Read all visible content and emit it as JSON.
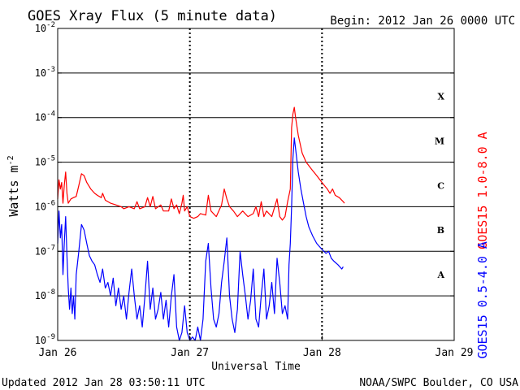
{
  "chart_data": {
    "type": "line",
    "title": "GOES Xray Flux (5 minute data)",
    "subtitle": "Begin:  2012 Jan 26 0000 UTC",
    "xlabel": "Universal Time",
    "ylabel_main": "Watts m",
    "ylabel_sup": "-2",
    "footer_left": "Updated 2012 Jan 28 03:50:11 UTC",
    "footer_right": "NOAA/SWPC Boulder, CO USA",
    "y_scale": "log",
    "ylim": [
      1e-09,
      0.01
    ],
    "xlim": [
      0,
      3
    ],
    "x_unit": "days since 2012 Jan 26 0000 UTC",
    "y_ticks": [
      {
        "value": 0.01,
        "base": "10",
        "exp": "-2"
      },
      {
        "value": 0.001,
        "base": "10",
        "exp": "-3"
      },
      {
        "value": 0.0001,
        "base": "10",
        "exp": "-4"
      },
      {
        "value": 1e-05,
        "base": "10",
        "exp": "-5"
      },
      {
        "value": 1e-06,
        "base": "10",
        "exp": "-6"
      },
      {
        "value": 1e-07,
        "base": "10",
        "exp": "-7"
      },
      {
        "value": 1e-08,
        "base": "10",
        "exp": "-8"
      },
      {
        "value": 1e-09,
        "base": "10",
        "exp": "-9"
      }
    ],
    "x_ticks": [
      {
        "value": 0,
        "label": "Jan 26"
      },
      {
        "value": 1,
        "label": "Jan 27"
      },
      {
        "value": 2,
        "label": "Jan 28"
      },
      {
        "value": 3,
        "label": "Jan 29"
      }
    ],
    "gridlines": [
      0.001,
      0.0001,
      1e-05,
      1e-06,
      1e-07,
      1e-08
    ],
    "flare_classes": [
      {
        "label": "X",
        "value": 0.0003
      },
      {
        "label": "M",
        "value": 3e-05
      },
      {
        "label": "C",
        "value": 3e-06
      },
      {
        "label": "B",
        "value": 3e-07
      },
      {
        "label": "A",
        "value": 3e-08
      }
    ],
    "series": [
      {
        "name": "GOES15 1.0-8.0 A",
        "color": "#ff0000",
        "points": [
          [
            0.0,
            1.5e-06
          ],
          [
            0.01,
            4e-06
          ],
          [
            0.02,
            2.5e-06
          ],
          [
            0.03,
            3.5e-06
          ],
          [
            0.04,
            1.2e-06
          ],
          [
            0.05,
            3e-06
          ],
          [
            0.06,
            6e-06
          ],
          [
            0.07,
            2e-06
          ],
          [
            0.08,
            1.2e-06
          ],
          [
            0.1,
            1.5e-06
          ],
          [
            0.12,
            1.6e-06
          ],
          [
            0.14,
            1.7e-06
          ],
          [
            0.16,
            3e-06
          ],
          [
            0.18,
            5.5e-06
          ],
          [
            0.2,
            5e-06
          ],
          [
            0.22,
            3.5e-06
          ],
          [
            0.25,
            2.5e-06
          ],
          [
            0.28,
            2e-06
          ],
          [
            0.3,
            1.8e-06
          ],
          [
            0.33,
            1.6e-06
          ],
          [
            0.34,
            2e-06
          ],
          [
            0.36,
            1.4e-06
          ],
          [
            0.4,
            1.2e-06
          ],
          [
            0.44,
            1.1e-06
          ],
          [
            0.48,
            1e-06
          ],
          [
            0.5,
            9e-07
          ],
          [
            0.54,
            1e-06
          ],
          [
            0.58,
            9e-07
          ],
          [
            0.6,
            1.3e-06
          ],
          [
            0.62,
            9e-07
          ],
          [
            0.66,
            1e-06
          ],
          [
            0.68,
            1.6e-06
          ],
          [
            0.7,
            1e-06
          ],
          [
            0.72,
            1.7e-06
          ],
          [
            0.74,
            9e-07
          ],
          [
            0.78,
            1.1e-06
          ],
          [
            0.8,
            8e-07
          ],
          [
            0.84,
            8e-07
          ],
          [
            0.86,
            1.5e-06
          ],
          [
            0.88,
            9e-07
          ],
          [
            0.9,
            1.1e-06
          ],
          [
            0.92,
            7e-07
          ],
          [
            0.94,
            1.2e-06
          ],
          [
            0.95,
            1.8e-06
          ],
          [
            0.96,
            8e-07
          ],
          [
            0.98,
            1e-06
          ],
          [
            1.0,
            6e-07
          ],
          [
            1.03,
            5.5e-07
          ],
          [
            1.06,
            6e-07
          ],
          [
            1.08,
            7e-07
          ],
          [
            1.12,
            6.5e-07
          ],
          [
            1.14,
            1.8e-06
          ],
          [
            1.16,
            8e-07
          ],
          [
            1.2,
            6e-07
          ],
          [
            1.24,
            1.1e-06
          ],
          [
            1.26,
            2.5e-06
          ],
          [
            1.28,
            1.5e-06
          ],
          [
            1.3,
            1e-06
          ],
          [
            1.33,
            8e-07
          ],
          [
            1.36,
            6e-07
          ],
          [
            1.4,
            8e-07
          ],
          [
            1.44,
            6e-07
          ],
          [
            1.48,
            7e-07
          ],
          [
            1.5,
            1e-06
          ],
          [
            1.52,
            6e-07
          ],
          [
            1.54,
            1.3e-06
          ],
          [
            1.56,
            6e-07
          ],
          [
            1.58,
            8e-07
          ],
          [
            1.62,
            6e-07
          ],
          [
            1.66,
            1.5e-06
          ],
          [
            1.68,
            6e-07
          ],
          [
            1.7,
            5e-07
          ],
          [
            1.72,
            6e-07
          ],
          [
            1.74,
            1.3e-06
          ],
          [
            1.76,
            2.5e-06
          ],
          [
            1.77,
            6e-05
          ],
          [
            1.78,
            0.00012
          ],
          [
            1.79,
            0.00017
          ],
          [
            1.8,
            0.0001
          ],
          [
            1.82,
            4e-05
          ],
          [
            1.85,
            1.6e-05
          ],
          [
            1.88,
            1e-05
          ],
          [
            1.92,
            7e-06
          ],
          [
            1.96,
            5e-06
          ],
          [
            2.0,
            3.5e-06
          ],
          [
            2.04,
            2.5e-06
          ],
          [
            2.06,
            2e-06
          ],
          [
            2.08,
            2.5e-06
          ],
          [
            2.1,
            1.8e-06
          ],
          [
            2.13,
            1.6e-06
          ],
          [
            2.16,
            1.3e-06
          ],
          [
            2.17,
            1.2e-06
          ]
        ]
      },
      {
        "name": "GOES15 0.5-4.0 A",
        "color": "#0000ff",
        "points": [
          [
            0.0,
            1.5e-07
          ],
          [
            0.01,
            8e-07
          ],
          [
            0.02,
            2e-07
          ],
          [
            0.03,
            4e-07
          ],
          [
            0.04,
            3e-08
          ],
          [
            0.05,
            1.5e-07
          ],
          [
            0.06,
            6e-07
          ],
          [
            0.07,
            8e-08
          ],
          [
            0.08,
            1.5e-08
          ],
          [
            0.09,
            5e-09
          ],
          [
            0.1,
            1.5e-08
          ],
          [
            0.11,
            4e-09
          ],
          [
            0.12,
            1e-08
          ],
          [
            0.13,
            3e-09
          ],
          [
            0.14,
            3e-08
          ],
          [
            0.16,
            1e-07
          ],
          [
            0.18,
            4e-07
          ],
          [
            0.2,
            3e-07
          ],
          [
            0.22,
            1.5e-07
          ],
          [
            0.24,
            8e-08
          ],
          [
            0.26,
            6e-08
          ],
          [
            0.28,
            5e-08
          ],
          [
            0.3,
            3e-08
          ],
          [
            0.32,
            2e-08
          ],
          [
            0.34,
            4e-08
          ],
          [
            0.36,
            1.5e-08
          ],
          [
            0.38,
            2e-08
          ],
          [
            0.4,
            1e-08
          ],
          [
            0.42,
            2.5e-08
          ],
          [
            0.44,
            6e-09
          ],
          [
            0.46,
            1.5e-08
          ],
          [
            0.48,
            5e-09
          ],
          [
            0.5,
            1e-08
          ],
          [
            0.52,
            3e-09
          ],
          [
            0.54,
            1.2e-08
          ],
          [
            0.56,
            4e-08
          ],
          [
            0.58,
            1e-08
          ],
          [
            0.6,
            3e-09
          ],
          [
            0.62,
            6e-09
          ],
          [
            0.64,
            2e-09
          ],
          [
            0.66,
            1e-08
          ],
          [
            0.68,
            6e-08
          ],
          [
            0.7,
            5e-09
          ],
          [
            0.72,
            1.5e-08
          ],
          [
            0.74,
            3e-09
          ],
          [
            0.76,
            5e-09
          ],
          [
            0.78,
            1.2e-08
          ],
          [
            0.8,
            3e-09
          ],
          [
            0.82,
            8e-09
          ],
          [
            0.84,
            2e-09
          ],
          [
            0.86,
            1e-08
          ],
          [
            0.88,
            3e-08
          ],
          [
            0.9,
            2e-09
          ],
          [
            0.92,
            1e-09
          ],
          [
            0.94,
            1.5e-09
          ],
          [
            0.96,
            6e-09
          ],
          [
            0.98,
            1.5e-09
          ],
          [
            1.0,
            1e-09
          ],
          [
            1.02,
            1.2e-09
          ],
          [
            1.04,
            1e-09
          ],
          [
            1.06,
            2e-09
          ],
          [
            1.08,
            1e-09
          ],
          [
            1.1,
            3e-09
          ],
          [
            1.12,
            6e-08
          ],
          [
            1.14,
            1.5e-07
          ],
          [
            1.16,
            1.5e-08
          ],
          [
            1.18,
            3e-09
          ],
          [
            1.2,
            2e-09
          ],
          [
            1.22,
            4e-09
          ],
          [
            1.24,
            2e-08
          ],
          [
            1.26,
            6e-08
          ],
          [
            1.28,
            2e-07
          ],
          [
            1.3,
            1e-08
          ],
          [
            1.32,
            3e-09
          ],
          [
            1.34,
            1.5e-09
          ],
          [
            1.36,
            5e-09
          ],
          [
            1.38,
            1e-07
          ],
          [
            1.4,
            3e-08
          ],
          [
            1.42,
            1e-08
          ],
          [
            1.44,
            3e-09
          ],
          [
            1.46,
            8e-09
          ],
          [
            1.48,
            4e-08
          ],
          [
            1.5,
            3e-09
          ],
          [
            1.52,
            2e-09
          ],
          [
            1.54,
            1e-08
          ],
          [
            1.56,
            4e-08
          ],
          [
            1.58,
            3e-09
          ],
          [
            1.6,
            6e-09
          ],
          [
            1.62,
            2e-08
          ],
          [
            1.64,
            4e-09
          ],
          [
            1.66,
            7e-08
          ],
          [
            1.68,
            2e-08
          ],
          [
            1.7,
            4e-09
          ],
          [
            1.72,
            6e-09
          ],
          [
            1.74,
            3e-09
          ],
          [
            1.75,
            5e-08
          ],
          [
            1.76,
            1.5e-07
          ],
          [
            1.77,
            1e-06
          ],
          [
            1.78,
            1.2e-05
          ],
          [
            1.79,
            3.5e-05
          ],
          [
            1.8,
            2e-05
          ],
          [
            1.82,
            6e-06
          ],
          [
            1.84,
            2.5e-06
          ],
          [
            1.86,
            1.2e-06
          ],
          [
            1.88,
            6e-07
          ],
          [
            1.9,
            3.5e-07
          ],
          [
            1.93,
            2.2e-07
          ],
          [
            1.96,
            1.5e-07
          ],
          [
            2.0,
            1.1e-07
          ],
          [
            2.03,
            9e-08
          ],
          [
            2.05,
            1e-07
          ],
          [
            2.07,
            7e-08
          ],
          [
            2.09,
            6e-08
          ],
          [
            2.12,
            5e-08
          ],
          [
            2.15,
            4e-08
          ],
          [
            2.16,
            4.5e-08
          ]
        ]
      }
    ]
  }
}
